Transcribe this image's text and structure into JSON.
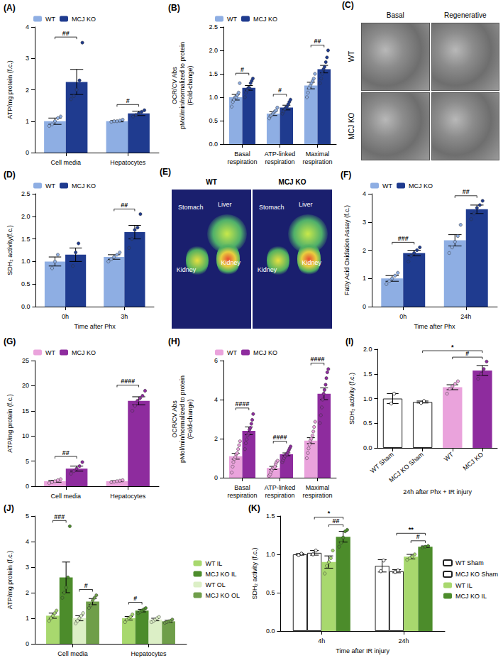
{
  "chart_data": [
    {
      "panel": "(A)",
      "type": "bar",
      "ylabel": "ATP/mg protein (f.c.)",
      "categories": [
        "Cell media",
        "Hepatocytes"
      ],
      "series": [
        {
          "name": "WT",
          "color": "#8eaee3",
          "values": [
            1.0,
            1.0
          ],
          "errors": [
            0.1,
            0.02
          ],
          "points": [
            [
              0.85,
              0.9,
              1.0,
              1.1,
              1.15
            ],
            [
              0.98,
              1.0,
              1.0,
              1.02,
              1.05
            ]
          ]
        },
        {
          "name": "MCJ KO",
          "color": "#1f3b8f",
          "values": [
            2.25,
            1.25
          ],
          "errors": [
            0.4,
            0.07
          ],
          "points": [
            [
              1.7,
              1.8,
              2.0,
              2.3,
              3.5
            ],
            [
              1.15,
              1.2,
              1.25,
              1.3,
              1.35
            ]
          ]
        }
      ],
      "ylim": [
        0,
        4
      ],
      "yticks": [
        0,
        1,
        2,
        3,
        4
      ],
      "grid": false,
      "legend": "top-left",
      "annotations": [
        {
          "text": "##",
          "category": "Cell media",
          "from": "WT",
          "to": "MCJ KO"
        },
        {
          "text": "#",
          "category": "Hepatocytes",
          "from": "WT",
          "to": "MCJ KO"
        }
      ]
    },
    {
      "panel": "(B)",
      "type": "bar",
      "ylabel": [
        "OCR/CV Abs",
        "pMol/min/normalized to protein",
        "(Fold-change)"
      ],
      "categories": [
        "Basal respiration",
        "ATP-linked respiration",
        "Maximal respiration"
      ],
      "series": [
        {
          "name": "WT",
          "color": "#8eaee3",
          "values": [
            1.0,
            0.65,
            1.25
          ],
          "errors": [
            0.06,
            0.04,
            0.07
          ],
          "points": [
            [
              0.8,
              0.9,
              0.95,
              1.0,
              1.0,
              1.05,
              1.1,
              1.3
            ],
            [
              0.55,
              0.6,
              0.62,
              0.65,
              0.68,
              0.7,
              0.72,
              0.78
            ],
            [
              1.0,
              1.1,
              1.2,
              1.25,
              1.3,
              1.35,
              1.4,
              1.5
            ]
          ]
        },
        {
          "name": "MCJ KO",
          "color": "#1f3b8f",
          "values": [
            1.2,
            0.78,
            1.6
          ],
          "errors": [
            0.05,
            0.05,
            0.08
          ],
          "points": [
            [
              1.0,
              1.1,
              1.15,
              1.2,
              1.2,
              1.3,
              1.35,
              1.4
            ],
            [
              0.65,
              0.7,
              0.75,
              0.78,
              0.8,
              0.85,
              0.9,
              0.95
            ],
            [
              1.3,
              1.4,
              1.5,
              1.6,
              1.65,
              1.75,
              1.85,
              2.0
            ]
          ]
        }
      ],
      "ylim": [
        0,
        2.5
      ],
      "yticks": [
        {
          "value": 0,
          "label": "0.0"
        },
        0.5,
        {
          "value": 1,
          "label": "1.0"
        },
        1.5,
        {
          "value": 2,
          "label": "2.0"
        },
        2.5
      ],
      "grid": false,
      "legend": "top-left",
      "annotations": [
        {
          "text": "#",
          "category": "Basal respiration",
          "from": "WT",
          "to": "MCJ KO"
        },
        {
          "text": "#",
          "category": "ATP-linked respiration",
          "from": "WT",
          "to": "MCJ KO"
        },
        {
          "text": "##",
          "category": "Maximal respiration",
          "from": "WT",
          "to": "MCJ KO"
        }
      ]
    },
    {
      "panel": "(D)",
      "type": "bar",
      "ylabel": "SDH₂ activity(f.c.)",
      "xlabel": "Time after Phx",
      "categories": [
        "0h",
        "3h"
      ],
      "series": [
        {
          "name": "WT",
          "color": "#8eaee3",
          "values": [
            1.0,
            1.1
          ],
          "errors": [
            0.1,
            0.05
          ],
          "points": [
            [
              0.85,
              1.0,
              1.15
            ],
            [
              1.0,
              1.05,
              1.1,
              1.15,
              1.2
            ]
          ]
        },
        {
          "name": "MCJ KO",
          "color": "#1f3b8f",
          "values": [
            1.15,
            1.65
          ],
          "errors": [
            0.15,
            0.15
          ],
          "points": [
            [
              0.9,
              1.2,
              1.4
            ],
            [
              1.3,
              1.5,
              1.7,
              1.75,
              2.05
            ]
          ]
        }
      ],
      "ylim": [
        0,
        2.5
      ],
      "yticks": [
        {
          "value": 0,
          "label": "0.0"
        },
        0.5,
        {
          "value": 1,
          "label": "1.0"
        },
        1.5,
        {
          "value": 2,
          "label": "2.0"
        },
        2.5
      ],
      "grid": false,
      "legend": "top-left",
      "annotations": [
        {
          "text": "##",
          "category": "3h",
          "from": "WT",
          "to": "MCJ KO"
        }
      ]
    },
    {
      "panel": "(F)",
      "type": "bar",
      "ylabel": "Fatty Acid Oxidation Assay (f.c.)",
      "xlabel": "Time after Phx",
      "categories": [
        "0h",
        "24h"
      ],
      "series": [
        {
          "name": "WT",
          "color": "#8eaee3",
          "values": [
            1.0,
            2.35
          ],
          "errors": [
            0.1,
            0.2
          ],
          "points": [
            [
              0.8,
              0.9,
              1.0,
              1.1,
              1.2
            ],
            [
              1.9,
              2.1,
              2.3,
              2.5,
              2.9
            ]
          ]
        },
        {
          "name": "MCJ KO",
          "color": "#1f3b8f",
          "values": [
            1.9,
            3.45
          ],
          "errors": [
            0.1,
            0.15
          ],
          "points": [
            [
              1.6,
              1.8,
              1.9,
              2.0,
              2.1
            ],
            [
              3.1,
              3.3,
              3.5,
              3.6,
              3.75
            ]
          ]
        }
      ],
      "ylim": [
        0,
        4
      ],
      "yticks": [
        0,
        1,
        2,
        3,
        4
      ],
      "grid": false,
      "legend": "top-left",
      "annotations": [
        {
          "text": "###",
          "category": "0h",
          "from": "WT",
          "to": "MCJ KO"
        },
        {
          "text": "##",
          "category": "24h",
          "from": "WT",
          "to": "MCJ KO"
        }
      ]
    },
    {
      "panel": "(G)",
      "type": "bar",
      "ylabel": "ATP/mg protein (f.c.)",
      "categories": [
        "Cell media",
        "Hepatocytes"
      ],
      "series": [
        {
          "name": "WT",
          "color": "#eaa3dc",
          "values": [
            1.0,
            1.0
          ],
          "errors": [
            0.2,
            0.1
          ],
          "points": [
            [
              0.6,
              0.8,
              1.0,
              1.2,
              1.4
            ],
            [
              0.8,
              0.9,
              1.0,
              1.1,
              1.2
            ]
          ]
        },
        {
          "name": "MCJ KO",
          "color": "#8e2c9e",
          "values": [
            3.5,
            17
          ],
          "errors": [
            0.5,
            0.8
          ],
          "points": [
            [
              2.5,
              3.0,
              3.5,
              4.0,
              4.8
            ],
            [
              15,
              16,
              17,
              17.5,
              18,
              19
            ]
          ]
        }
      ],
      "ylim": [
        0,
        25
      ],
      "yticks": [
        0,
        5,
        10,
        15,
        20,
        25
      ],
      "grid": false,
      "legend": "top-left",
      "annotations": [
        {
          "text": "##",
          "category": "Cell media",
          "from": "WT",
          "to": "MCJ KO"
        },
        {
          "text": "####",
          "category": "Hepatocytes",
          "from": "WT",
          "to": "MCJ KO"
        }
      ]
    },
    {
      "panel": "(H)",
      "type": "bar",
      "ylabel": [
        "OCR/CV Abs",
        "pMol/min/normalized to protein",
        "(Fold-change)"
      ],
      "categories": [
        "Basal respiration",
        "ATP-linked respiration",
        "Maximal respiration"
      ],
      "series": [
        {
          "name": "WT",
          "color": "#eaa3dc",
          "values": [
            1.1,
            0.5,
            1.9
          ],
          "errors": [
            0.15,
            0.08,
            0.15
          ],
          "points": [
            [
              0.3,
              0.6,
              0.8,
              1.0,
              1.1,
              1.2,
              1.3,
              1.5,
              1.7,
              1.9
            ],
            [
              0.1,
              0.2,
              0.3,
              0.4,
              0.5,
              0.5,
              0.6,
              0.7,
              0.8,
              0.9
            ],
            [
              1.0,
              1.3,
              1.5,
              1.7,
              1.9,
              2.0,
              2.2,
              2.4,
              2.6,
              2.9
            ]
          ]
        },
        {
          "name": "MCJ KO",
          "color": "#8e2c9e",
          "values": [
            2.4,
            1.2,
            4.3
          ],
          "errors": [
            0.2,
            0.07,
            0.3
          ],
          "points": [
            [
              1.5,
              1.8,
              2.0,
              2.2,
              2.3,
              2.5,
              2.6,
              2.8,
              3.0,
              3.3
            ],
            [
              0.8,
              0.9,
              1.0,
              1.1,
              1.2,
              1.2,
              1.3,
              1.4,
              1.5,
              1.6
            ],
            [
              2.8,
              3.2,
              3.6,
              4.0,
              4.3,
              4.5,
              4.8,
              5.1,
              5.4,
              5.6
            ]
          ]
        }
      ],
      "ylim": [
        0,
        6
      ],
      "yticks": [
        0,
        2,
        4,
        6
      ],
      "grid": false,
      "legend": "top-left",
      "annotations": [
        {
          "text": "####",
          "category": "Basal respiration",
          "from": "WT",
          "to": "MCJ KO"
        },
        {
          "text": "####",
          "category": "ATP-linked respiration",
          "from": "WT",
          "to": "MCJ KO"
        },
        {
          "text": "####",
          "category": "Maximal respiration",
          "from": "WT",
          "to": "MCJ KO"
        }
      ]
    },
    {
      "panel": "(I)",
      "type": "bar",
      "ylabel": "SDH₂ activity (f.c.)",
      "xlabel": "24h after Phx + IR injury",
      "categories": [
        "WT Sham",
        "MCJ KO Sham",
        "WT",
        "MCJ KO"
      ],
      "values": [
        1.0,
        0.93,
        1.23,
        1.57
      ],
      "errors": [
        0.1,
        0.02,
        0.05,
        0.1
      ],
      "points": [
        [
          0.9,
          1.1
        ],
        [
          0.91,
          0.95
        ],
        [
          1.1,
          1.2,
          1.25,
          1.3,
          1.35
        ],
        [
          1.4,
          1.5,
          1.6,
          1.75
        ]
      ],
      "colors": [
        "#ffffff",
        "#ffffff",
        "#eaa3dc",
        "#8e2c9e"
      ],
      "ylim": [
        0,
        2
      ],
      "yticks": [
        {
          "value": 0,
          "label": "0.0"
        },
        0.5,
        {
          "value": 1,
          "label": "1.0"
        },
        1.5,
        {
          "value": 2,
          "label": "2.0"
        }
      ],
      "grid": false,
      "annotations": [
        {
          "text": "#",
          "from": "WT",
          "to": "MCJ KO"
        },
        {
          "text": "*",
          "from": "MCJ KO Sham",
          "to": "MCJ KO"
        }
      ]
    },
    {
      "panel": "(J)",
      "type": "bar",
      "ylabel": "ATP/mg protein (f.c.)",
      "categories": [
        "Cell media",
        "Hepatocytes"
      ],
      "series": [
        {
          "name": "WT IL",
          "color": "#a8d86e",
          "values": [
            1.1,
            1.0
          ],
          "errors": [
            0.1,
            0.07
          ],
          "points": [
            [
              0.9,
              1.0,
              1.1,
              1.2,
              1.3
            ],
            [
              0.85,
              0.95,
              1.0,
              1.05,
              1.15
            ]
          ]
        },
        {
          "name": "MCJ KO IL",
          "color": "#4c8c2b",
          "values": [
            2.6,
            1.3
          ],
          "errors": [
            0.6,
            0.05
          ],
          "points": [
            [
              1.8,
              2.0,
              2.2,
              2.6,
              4.6
            ],
            [
              1.2,
              1.25,
              1.3,
              1.35,
              1.4
            ]
          ]
        },
        {
          "name": "WT OL",
          "color": "#dcefc6",
          "values": [
            1.0,
            0.95
          ],
          "errors": [
            0.1,
            0.05
          ],
          "points": [
            [
              0.8,
              0.9,
              1.0,
              1.1,
              1.2
            ],
            [
              0.85,
              0.9,
              0.95,
              1.0,
              1.05
            ]
          ]
        },
        {
          "name": "MCJ KO OL",
          "color": "#6f9e4a",
          "values": [
            1.65,
            0.88
          ],
          "errors": [
            0.12,
            0.04
          ],
          "points": [
            [
              1.4,
              1.5,
              1.7,
              1.8,
              1.9
            ],
            [
              0.82,
              0.85,
              0.88,
              0.9,
              0.95
            ]
          ]
        }
      ],
      "ylim": [
        0,
        5
      ],
      "yticks": [
        0,
        1,
        2,
        3,
        4,
        5
      ],
      "grid": false,
      "legend": "right",
      "annotations": [
        {
          "text": "###",
          "category": "Cell media",
          "from": "WT IL",
          "to": "MCJ KO IL"
        },
        {
          "text": "#",
          "category": "Cell media",
          "from": "WT OL",
          "to": "MCJ KO OL"
        },
        {
          "text": "#",
          "category": "Hepatocytes",
          "from": "WT IL",
          "to": "MCJ KO IL"
        }
      ]
    },
    {
      "panel": "(K)",
      "type": "bar",
      "ylabel": "SDH₂ activity (f.c.)",
      "xlabel": "Time after IR injury",
      "categories": [
        "4h",
        "24h"
      ],
      "series": [
        {
          "name": "WT Sham",
          "color": "#ffffff",
          "values": [
            1.0,
            0.85
          ],
          "errors": [
            0.01,
            0.08
          ],
          "points": [
            [
              0.99,
              1.01
            ],
            [
              0.78,
              0.92
            ]
          ]
        },
        {
          "name": "MCJ KO Sham",
          "color": "#ffffff",
          "values": [
            1.02,
            0.78
          ],
          "errors": [
            0.03,
            0.02
          ],
          "points": [
            [
              1.0,
              1.05
            ],
            [
              0.77,
              0.79
            ]
          ]
        },
        {
          "name": "WT IL",
          "color": "#a8d86e",
          "values": [
            0.9,
            0.97
          ],
          "errors": [
            0.08,
            0.03
          ],
          "points": [
            [
              0.75,
              0.85,
              0.9,
              0.95,
              1.05
            ],
            [
              0.93,
              0.95,
              0.97,
              1.0
            ]
          ]
        },
        {
          "name": "MCJ KO IL",
          "color": "#4c8c2b",
          "values": [
            1.23,
            1.1
          ],
          "errors": [
            0.07,
            0.01
          ],
          "points": [
            [
              1.1,
              1.15,
              1.22,
              1.3,
              1.32
            ],
            [
              1.09,
              1.1,
              1.11
            ]
          ]
        }
      ],
      "ylim": [
        0,
        1.5
      ],
      "yticks": [
        {
          "value": 0,
          "label": "0.0"
        },
        0.5,
        {
          "value": 1,
          "label": "1.0"
        },
        1.5
      ],
      "grid": false,
      "legend": "right",
      "annotations": [
        {
          "text": "##",
          "category": "4h",
          "from": "WT IL",
          "to": "MCJ KO IL"
        },
        {
          "text": "*",
          "category": "4h",
          "from": "MCJ KO Sham",
          "to": "MCJ KO IL"
        },
        {
          "text": "#",
          "category": "24h",
          "from": "WT IL",
          "to": "MCJ KO IL"
        },
        {
          "text": "**",
          "category": "24h",
          "from": "MCJ KO Sham",
          "to": "MCJ KO IL"
        }
      ]
    }
  ],
  "images": [
    {
      "panel": "(C)",
      "columns": [
        "Basal",
        "Regenerative"
      ],
      "rows": [
        "WT",
        "MCJ KO"
      ]
    },
    {
      "panel": "(E)",
      "columns": [
        "WT",
        "MCJ KO"
      ],
      "labels": [
        [
          "Stomach",
          "Liver",
          "Kidney",
          "Kidney"
        ],
        [
          "Stomach",
          "Liver",
          "Kidney",
          "Kidney"
        ]
      ]
    }
  ]
}
